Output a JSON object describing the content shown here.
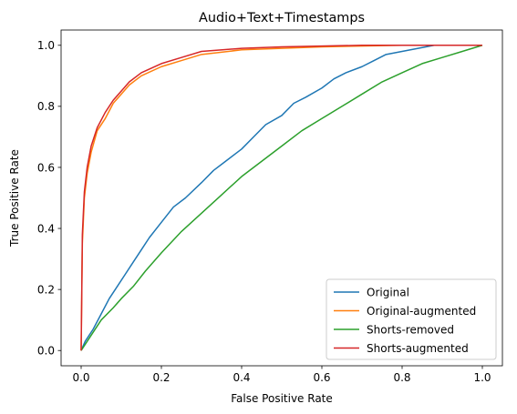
{
  "chart_data": {
    "type": "line",
    "title": "Audio+Text+Timestamps",
    "xlabel": "False Positive Rate",
    "ylabel": "True Positive Rate",
    "xlim": [
      -0.05,
      1.05
    ],
    "ylim": [
      -0.05,
      1.05
    ],
    "x_ticks": [
      "0.0",
      "0.2",
      "0.4",
      "0.6",
      "0.8",
      "1.0"
    ],
    "y_ticks": [
      "0.0",
      "0.2",
      "0.4",
      "0.6",
      "0.8",
      "1.0"
    ],
    "grid": false,
    "legend_position": "lower-right",
    "series": [
      {
        "name": "Original",
        "color": "#1f77b4",
        "points": [
          [
            0,
            0
          ],
          [
            0.01,
            0.03
          ],
          [
            0.03,
            0.07
          ],
          [
            0.05,
            0.12
          ],
          [
            0.07,
            0.17
          ],
          [
            0.09,
            0.21
          ],
          [
            0.11,
            0.25
          ],
          [
            0.13,
            0.29
          ],
          [
            0.15,
            0.33
          ],
          [
            0.17,
            0.37
          ],
          [
            0.2,
            0.42
          ],
          [
            0.23,
            0.47
          ],
          [
            0.26,
            0.5
          ],
          [
            0.3,
            0.55
          ],
          [
            0.33,
            0.59
          ],
          [
            0.36,
            0.62
          ],
          [
            0.4,
            0.66
          ],
          [
            0.43,
            0.7
          ],
          [
            0.46,
            0.74
          ],
          [
            0.5,
            0.77
          ],
          [
            0.53,
            0.81
          ],
          [
            0.56,
            0.83
          ],
          [
            0.6,
            0.86
          ],
          [
            0.63,
            0.89
          ],
          [
            0.66,
            0.91
          ],
          [
            0.7,
            0.93
          ],
          [
            0.73,
            0.95
          ],
          [
            0.76,
            0.97
          ],
          [
            0.8,
            0.98
          ],
          [
            0.84,
            0.99
          ],
          [
            0.88,
            1.0
          ],
          [
            1.0,
            1.0
          ]
        ]
      },
      {
        "name": "Original-augmented",
        "color": "#ff7f0e",
        "points": [
          [
            0,
            0
          ],
          [
            0.003,
            0.35
          ],
          [
            0.008,
            0.5
          ],
          [
            0.015,
            0.58
          ],
          [
            0.025,
            0.65
          ],
          [
            0.04,
            0.72
          ],
          [
            0.06,
            0.76
          ],
          [
            0.08,
            0.81
          ],
          [
            0.1,
            0.84
          ],
          [
            0.12,
            0.87
          ],
          [
            0.15,
            0.9
          ],
          [
            0.2,
            0.93
          ],
          [
            0.25,
            0.95
          ],
          [
            0.3,
            0.97
          ],
          [
            0.4,
            0.985
          ],
          [
            0.5,
            0.99
          ],
          [
            0.6,
            0.995
          ],
          [
            0.8,
            1.0
          ],
          [
            1.0,
            1.0
          ]
        ]
      },
      {
        "name": "Shorts-removed",
        "color": "#2ca02c",
        "points": [
          [
            0,
            0
          ],
          [
            0.02,
            0.04
          ],
          [
            0.05,
            0.1
          ],
          [
            0.08,
            0.14
          ],
          [
            0.1,
            0.17
          ],
          [
            0.13,
            0.21
          ],
          [
            0.16,
            0.26
          ],
          [
            0.2,
            0.32
          ],
          [
            0.25,
            0.39
          ],
          [
            0.3,
            0.45
          ],
          [
            0.35,
            0.51
          ],
          [
            0.4,
            0.57
          ],
          [
            0.45,
            0.62
          ],
          [
            0.5,
            0.67
          ],
          [
            0.55,
            0.72
          ],
          [
            0.6,
            0.76
          ],
          [
            0.65,
            0.8
          ],
          [
            0.7,
            0.84
          ],
          [
            0.75,
            0.88
          ],
          [
            0.8,
            0.91
          ],
          [
            0.85,
            0.94
          ],
          [
            0.9,
            0.96
          ],
          [
            0.95,
            0.98
          ],
          [
            1.0,
            1.0
          ]
        ]
      },
      {
        "name": "Shorts-augmented",
        "color": "#d62728",
        "points": [
          [
            0,
            0
          ],
          [
            0.003,
            0.38
          ],
          [
            0.008,
            0.52
          ],
          [
            0.015,
            0.6
          ],
          [
            0.025,
            0.67
          ],
          [
            0.04,
            0.73
          ],
          [
            0.06,
            0.78
          ],
          [
            0.08,
            0.82
          ],
          [
            0.1,
            0.85
          ],
          [
            0.12,
            0.88
          ],
          [
            0.15,
            0.91
          ],
          [
            0.2,
            0.94
          ],
          [
            0.25,
            0.96
          ],
          [
            0.3,
            0.98
          ],
          [
            0.4,
            0.99
          ],
          [
            0.5,
            0.995
          ],
          [
            0.7,
            1.0
          ],
          [
            1.0,
            1.0
          ]
        ]
      }
    ]
  }
}
